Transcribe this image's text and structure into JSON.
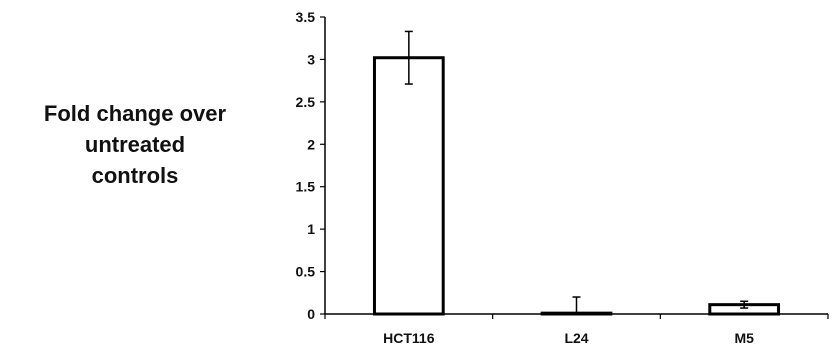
{
  "chart_data": {
    "type": "bar",
    "title": "",
    "xlabel": "",
    "ylabel": "Fold change over untreated controls",
    "ylabel_lines": [
      "Fold change over",
      "untreated",
      "controls"
    ],
    "categories": [
      "HCT116",
      "L24",
      "M5"
    ],
    "values": [
      3.02,
      0.01,
      0.11
    ],
    "errors": [
      0.31,
      0.19,
      0.04
    ],
    "ylim": [
      0,
      3.5
    ],
    "yticks": [
      0,
      0.5,
      1,
      1.5,
      2,
      2.5,
      3,
      3.5
    ],
    "ytick_labels": [
      "0",
      "0.5",
      "1",
      "1.5",
      "2",
      "2.5",
      "3",
      "3.5"
    ],
    "grid": false,
    "legend": "none",
    "colors": {
      "bar_fill": "#ffffff",
      "bar_stroke": "#000000",
      "axis": "#000000"
    }
  }
}
